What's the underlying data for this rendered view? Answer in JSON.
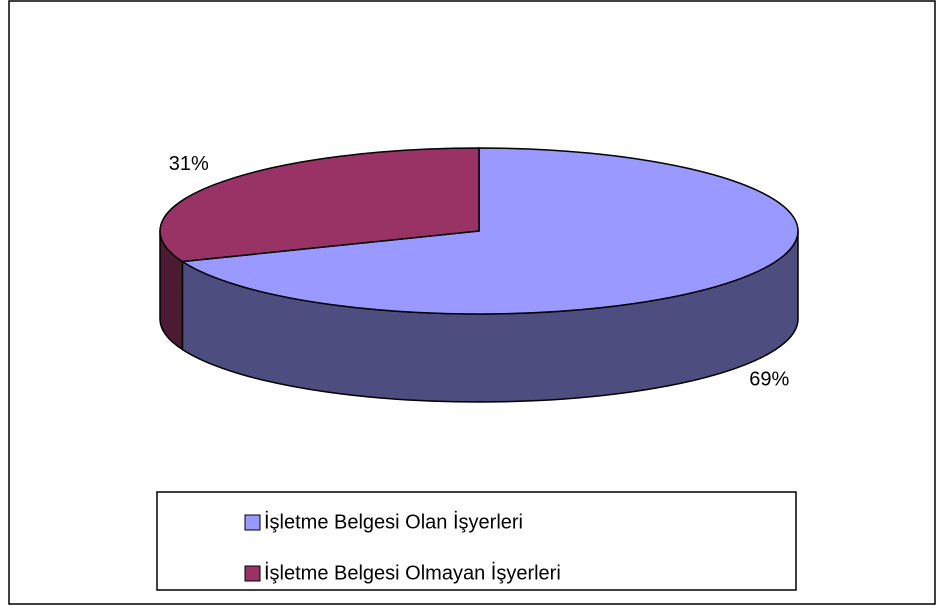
{
  "chart_data": {
    "type": "pie3d",
    "categories": [
      "İşletme Belgesi Olan İşyerleri",
      "İşletme Belgesi Olmayan İşyerleri"
    ],
    "values": [
      69,
      31
    ],
    "value_labels": [
      "69%",
      "31%"
    ],
    "colors": [
      "#9999ff",
      "#993366"
    ],
    "side_colors": [
      "#4d4d80",
      "#4d1a33"
    ],
    "legend": "bottom"
  }
}
